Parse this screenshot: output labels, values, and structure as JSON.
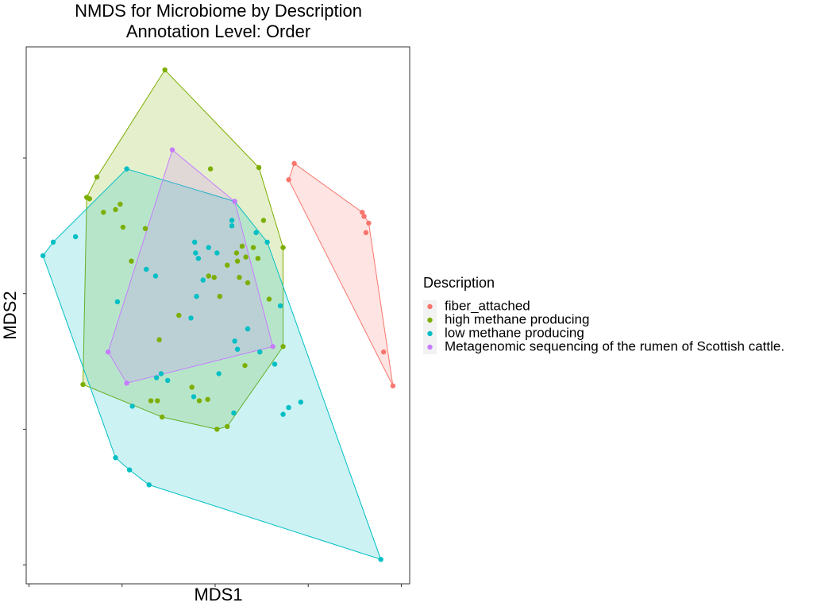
{
  "chart_data": {
    "type": "scatter",
    "title": "NMDS for Microbiome by Description",
    "subtitle": "Annotation Level: Order",
    "x_label": "MDS1",
    "y_label": "MDS2",
    "legend_title": "Description",
    "xlim": [
      -2.03,
      2.09
    ],
    "ylim": [
      -2.14,
      1.82
    ],
    "xticks": [
      -2,
      -1,
      0,
      1,
      2
    ],
    "yticks": [
      -2,
      -1,
      0,
      1
    ],
    "hulls": true,
    "series": [
      {
        "name": "fiber_attached",
        "color": "#F8766D",
        "x": [
          0.85,
          0.79,
          1.58,
          1.6,
          1.65,
          1.62,
          1.81,
          1.91
        ],
        "values": [
          0.96,
          0.84,
          0.6,
          0.57,
          0.52,
          0.45,
          -0.43,
          -0.68
        ]
      },
      {
        "name": "high methane producing",
        "color": "#7CAE00",
        "x": [
          -0.54,
          -1.27,
          -1.38,
          -1.35,
          -0.05,
          0.47,
          -1.02,
          -1.2,
          -1.07,
          -0.99,
          -0.75,
          0.52,
          0.73,
          0.41,
          0.29,
          0.33,
          0.46,
          0.23,
          0.24,
          0.13,
          0.26,
          -0.01,
          -0.07,
          0.35,
          0.05,
          0.58,
          -0.39,
          -0.6,
          0.73,
          0.32,
          -1.42,
          -0.25,
          -0.69,
          -0.62,
          -0.08,
          -0.17,
          -0.57,
          0.02,
          0.13,
          -0.9
        ],
        "values": [
          1.65,
          0.86,
          0.71,
          0.7,
          0.92,
          0.93,
          0.66,
          0.6,
          0.62,
          0.49,
          0.48,
          0.54,
          0.34,
          0.34,
          0.35,
          0.27,
          0.26,
          0.3,
          0.24,
          0.21,
          0.12,
          0.12,
          0.13,
          0.08,
          -0.02,
          -0.04,
          -0.16,
          -0.34,
          -0.39,
          -0.53,
          -0.67,
          -0.69,
          -0.79,
          -0.79,
          -0.78,
          -0.79,
          -0.91,
          -1.0,
          -0.98,
          0.24
        ]
      },
      {
        "name": "low methane producing",
        "color": "#00BFC4",
        "x": [
          -1.85,
          -1.74,
          -1.5,
          -0.95,
          0.21,
          0.18,
          0.18,
          0.44,
          0.56,
          0.7,
          0.64,
          0.04,
          0.21,
          0.24,
          0.35,
          0.48,
          -0.21,
          -0.22,
          -0.07,
          0.02,
          -0.18,
          -0.13,
          -0.2,
          -0.26,
          -1.05,
          -0.74,
          -0.64,
          -0.58,
          -0.63,
          -0.51,
          -0.89,
          -0.23,
          0.2,
          0.73,
          0.79,
          0.92,
          -1.07,
          -0.92,
          -0.71,
          1.78
        ],
        "values": [
          0.28,
          0.38,
          0.42,
          0.92,
          0.68,
          0.54,
          0.5,
          0.45,
          0.38,
          -0.09,
          -0.52,
          -0.59,
          -0.35,
          -0.41,
          -0.26,
          -0.43,
          0.3,
          0.38,
          0.34,
          0.3,
          0.26,
          0.1,
          -0.02,
          -0.18,
          -0.06,
          0.18,
          0.13,
          -0.59,
          -0.62,
          -0.64,
          -0.83,
          -0.76,
          -0.88,
          -0.89,
          -0.84,
          -0.8,
          -1.21,
          -1.3,
          -1.41,
          -1.96
        ]
      },
      {
        "name": "Metagenomic sequencing of the rumen of Scottish cattle.",
        "color": "#C77CFF",
        "x": [
          -0.46,
          0.21,
          0.62,
          -0.95,
          -1.15
        ],
        "values": [
          1.06,
          0.68,
          -0.39,
          -0.66,
          -0.43
        ]
      }
    ]
  }
}
